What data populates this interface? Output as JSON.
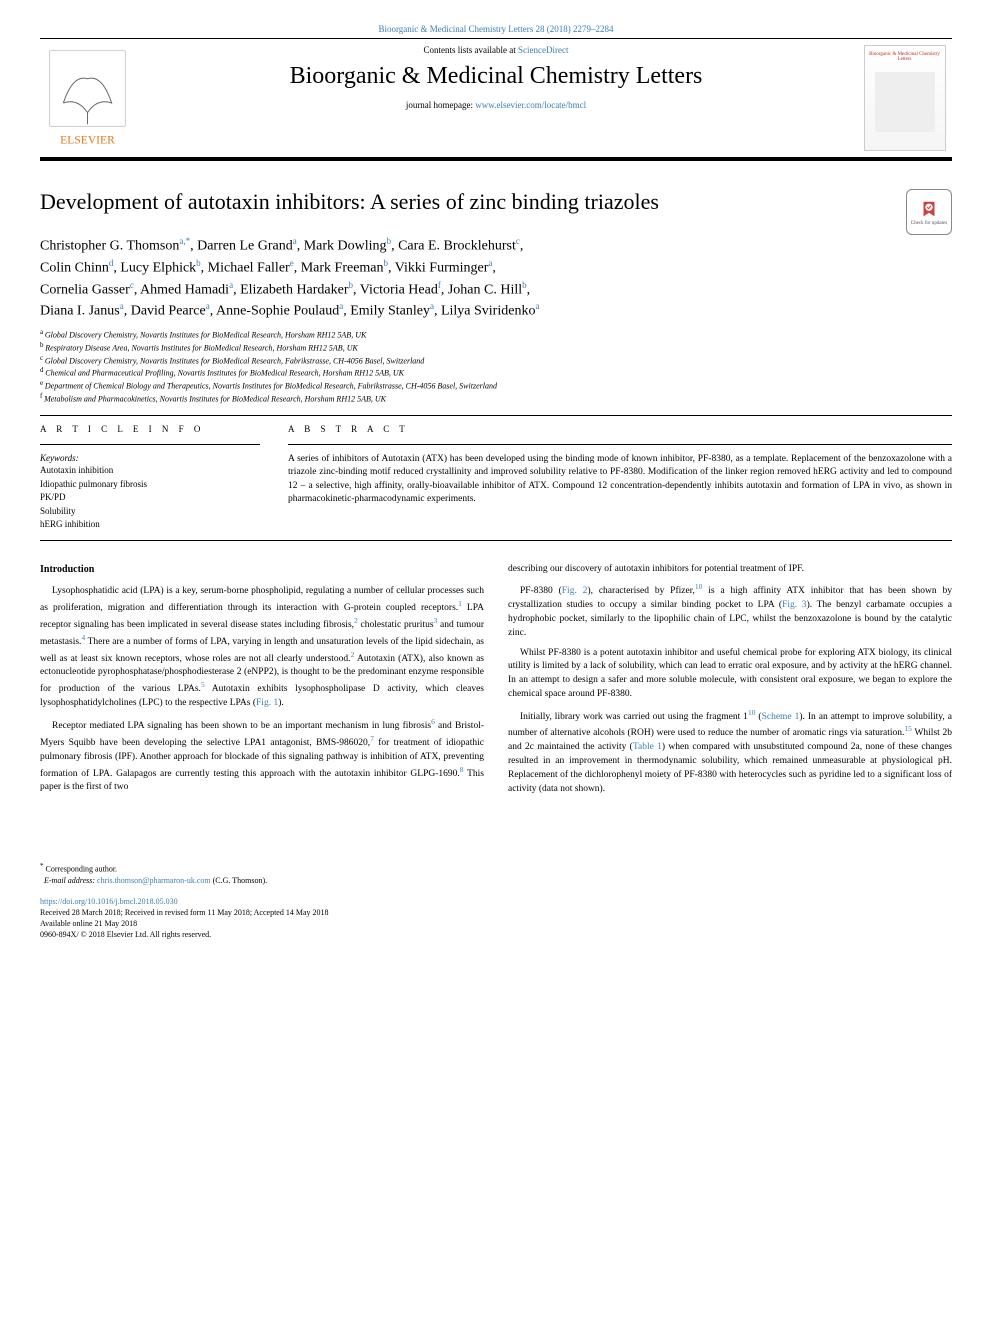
{
  "citation": "Bioorganic & Medicinal Chemistry Letters 28 (2018) 2279–2284",
  "header": {
    "contents_prefix": "Contents lists available at ",
    "contents_link": "ScienceDirect",
    "journal_name": "Bioorganic & Medicinal Chemistry Letters",
    "homepage_prefix": "journal homepage: ",
    "homepage_link": "www.elsevier.com/locate/bmcl",
    "publisher_logo_text": "ELSEVIER",
    "cover_title": "Bioorganic & Medicinal Chemistry Letters"
  },
  "title": "Development of autotaxin inhibitors: A series of zinc binding triazoles",
  "updates_label": "Check for updates",
  "authors_lines": [
    "Christopher G. Thomson|a,*|, Darren Le Grand|a|, Mark Dowling|b|, Cara E. Brocklehurst|c|,",
    "Colin Chinn|d|, Lucy Elphick|b|, Michael Faller|e|, Mark Freeman|b|, Vikki Furminger|a|,",
    "Cornelia Gasser|c|, Ahmed Hamadi|a|, Elizabeth Hardaker|b|, Victoria Head|f|, Johan C. Hill|b|,",
    "Diana I. Janus|a|, David Pearce|a|, Anne-Sophie Poulaud|a|, Emily Stanley|a|, Lilya Sviridenko|a|"
  ],
  "affiliations": [
    {
      "sup": "a",
      "text": "Global Discovery Chemistry, Novartis Institutes for BioMedical Research, Horsham RH12 5AB, UK"
    },
    {
      "sup": "b",
      "text": "Respiratory Disease Area, Novartis Institutes for BioMedical Research, Horsham RH12 5AB, UK"
    },
    {
      "sup": "c",
      "text": "Global Discovery Chemistry, Novartis Institutes for BioMedical Research, Fabrikstrasse, CH-4056 Basel, Switzerland"
    },
    {
      "sup": "d",
      "text": "Chemical and Pharmaceutical Profiling, Novartis Institutes for BioMedical Research, Horsham RH12 5AB, UK"
    },
    {
      "sup": "e",
      "text": "Department of Chemical Biology and Therapeutics, Novartis Institutes for BioMedical Research, Fabrikstrasse, CH-4056 Basel, Switzerland"
    },
    {
      "sup": "f",
      "text": "Metabolism and Pharmacokinetics, Novartis Institutes for BioMedical Research, Horsham RH12 5AB, UK"
    }
  ],
  "article_info_head": "A R T I C L E  I N F O",
  "abstract_head": "A B S T R A C T",
  "keywords_label": "Keywords:",
  "keywords": [
    "Autotaxin inhibition",
    "Idiopathic pulmonary fibrosis",
    "PK/PD",
    "Solubility",
    "hERG inhibition"
  ],
  "abstract": "A series of inhibitors of Autotaxin (ATX) has been developed using the binding mode of known inhibitor, PF-8380, as a template. Replacement of the benzoxazolone with a triazole zinc-binding motif reduced crystallinity and improved solubility relative to PF-8380. Modification of the linker region removed hERG activity and led to compound 12 – a selective, high affinity, orally-bioavailable inhibitor of ATX. Compound 12 concentration-dependently inhibits autotaxin and formation of LPA in vivo, as shown in pharmacokinetic-pharmacodynamic experiments.",
  "intro_head": "Introduction",
  "paragraphs": [
    "Lysophosphatidic acid (LPA) is a key, serum-borne phospholipid, regulating a number of cellular processes such as proliferation, migration and differentiation through its interaction with G-protein coupled receptors.|1| LPA receptor signaling has been implicated in several disease states including fibrosis,|2| cholestatic pruritus|3| and tumour metastasis.|4| There are a number of forms of LPA, varying in length and unsaturation levels of the lipid sidechain, as well as at least six known receptors, whose roles are not all clearly understood.|2| Autotaxin (ATX), also known as ectonucleotide pyrophosphatase/phosphodiesterase 2 (eNPP2), is thought to be the predominant enzyme responsible for production of the various LPAs.|5| Autotaxin exhibits lysophospholipase D activity, which cleaves lysophosphatidylcholines (LPC) to the respective LPAs (|Fig. 1|).",
    "Receptor mediated LPA signaling has been shown to be an important mechanism in lung fibrosis|6| and Bristol-Myers Squibb have been developing the selective LPA1 antagonist, BMS-986020,|7| for treatment of idiopathic pulmonary fibrosis (IPF). Another approach for blockade of this signaling pathway is inhibition of ATX, preventing formation of LPA. Galapagos are currently testing this approach with the autotaxin inhibitor GLPG-1690.|8| This paper is the first of two",
    "describing our discovery of autotaxin inhibitors for potential treatment of IPF.",
    "PF-8380 (|Fig. 2|), characterised by Pfizer,|10| is a high affinity ATX inhibitor that has been shown by crystallization studies to occupy a similar binding pocket to LPA (|Fig. 3|). The benzyl carbamate occupies a hydrophobic pocket, similarly to the lipophilic chain of LPC, whilst the benzoxazolone is bound by the catalytic zinc.",
    "Whilst PF-8380 is a potent autotaxin inhibitor and useful chemical probe for exploring ATX biology, its clinical utility is limited by a lack of solubility, which can lead to erratic oral exposure, and by activity at the hERG channel. In an attempt to design a safer and more soluble molecule, with consistent oral exposure, we began to explore the chemical space around PF-8380.",
    "Initially, library work was carried out using the fragment 1|10| (|Scheme 1|). In an attempt to improve solubility, a number of alternative alcohols (ROH) were used to reduce the number of aromatic rings via saturation.|15| Whilst 2b and 2c maintained the activity (|Table 1|) when compared with unsubstituted compound 2a, none of these changes resulted in an improvement in thermodynamic solubility, which remained unmeasurable at physiological pH. Replacement of the dichlorophenyl moiety of PF-8380 with heterocycles such as pyridine led to a significant loss of activity (data not shown)."
  ],
  "footer": {
    "corr_marker": "*",
    "corr_text": " Corresponding author.",
    "email_label": "E-mail address: ",
    "email": "chris.thomson@pharmaron-uk.com",
    "email_suffix": " (C.G. Thomson).",
    "doi": "https://doi.org/10.1016/j.bmcl.2018.05.030",
    "received": "Received 28 March 2018; Received in revised form 11 May 2018; Accepted 14 May 2018",
    "available": "Available online 21 May 2018",
    "copyright": "0960-894X/ © 2018 Elsevier Ltd. All rights reserved."
  },
  "colors": {
    "link": "#3a7fb5",
    "text": "#000000",
    "elsevier_orange": "#e77817"
  }
}
